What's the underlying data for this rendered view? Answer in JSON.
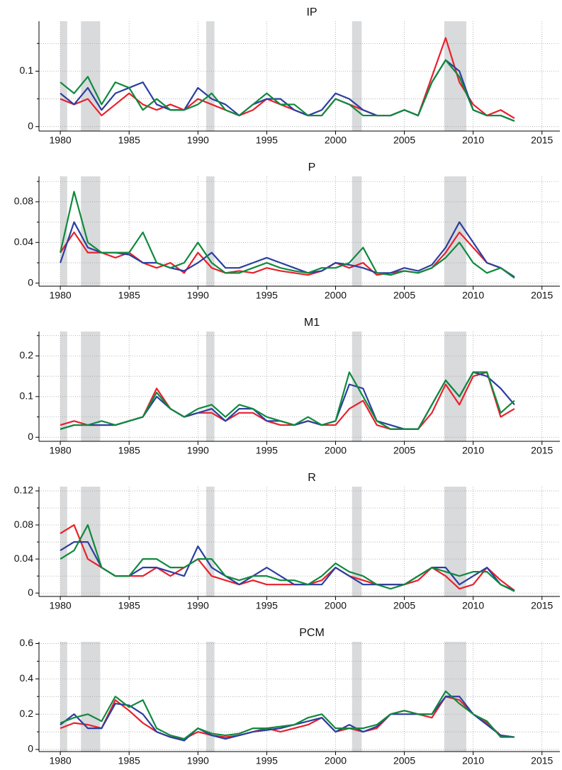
{
  "chart_data": [
    {
      "type": "line",
      "title": "IP",
      "x": [
        1980,
        1981,
        1982,
        1983,
        1984,
        1985,
        1986,
        1987,
        1988,
        1989,
        1990,
        1991,
        1992,
        1993,
        1994,
        1995,
        1996,
        1997,
        1998,
        1999,
        2000,
        2001,
        2002,
        2003,
        2004,
        2005,
        2006,
        2007,
        2008,
        2009,
        2010,
        2011,
        2012,
        2013
      ],
      "series": [
        {
          "color": "#e8212b",
          "values": [
            0.05,
            0.04,
            0.05,
            0.02,
            0.04,
            0.06,
            0.04,
            0.03,
            0.04,
            0.03,
            0.05,
            0.04,
            0.03,
            0.02,
            0.03,
            0.05,
            0.04,
            0.03,
            0.02,
            0.02,
            0.05,
            0.04,
            0.03,
            0.02,
            0.02,
            0.03,
            0.02,
            0.09,
            0.16,
            0.08,
            0.04,
            0.02,
            0.03,
            0.015
          ]
        },
        {
          "color": "#2b3fa0",
          "values": [
            0.06,
            0.04,
            0.07,
            0.03,
            0.06,
            0.07,
            0.08,
            0.04,
            0.03,
            0.03,
            0.07,
            0.05,
            0.04,
            0.02,
            0.04,
            0.05,
            0.05,
            0.03,
            0.02,
            0.03,
            0.06,
            0.05,
            0.03,
            0.02,
            0.02,
            0.03,
            0.02,
            0.08,
            0.12,
            0.1,
            0.03,
            0.02,
            0.02,
            0.01
          ]
        },
        {
          "color": "#0f8a3e",
          "values": [
            0.08,
            0.06,
            0.09,
            0.04,
            0.08,
            0.07,
            0.03,
            0.05,
            0.03,
            0.03,
            0.04,
            0.06,
            0.03,
            0.02,
            0.04,
            0.06,
            0.04,
            0.04,
            0.02,
            0.02,
            0.05,
            0.04,
            0.02,
            0.02,
            0.02,
            0.03,
            0.02,
            0.08,
            0.12,
            0.09,
            0.03,
            0.02,
            0.02,
            0.01
          ]
        }
      ],
      "shaded_x": [
        [
          1980,
          1980.5
        ],
        [
          1981.5,
          1982.9
        ],
        [
          1990.6,
          1991.2
        ],
        [
          2001.2,
          2001.9
        ],
        [
          2007.9,
          2009.5
        ]
      ],
      "xlim": [
        1978.45,
        2016.3
      ],
      "xticks": [
        1980,
        1985,
        1990,
        1995,
        2000,
        2005,
        2010,
        2015
      ],
      "ylim": [
        -0.008,
        0.19
      ],
      "yticks": [
        0,
        0.1
      ],
      "minor_yticks": [
        0.05,
        0.15
      ],
      "grid": true
    },
    {
      "type": "line",
      "title": "P",
      "x": [
        1980,
        1981,
        1982,
        1983,
        1984,
        1985,
        1986,
        1987,
        1988,
        1989,
        1990,
        1991,
        1992,
        1993,
        1994,
        1995,
        1996,
        1997,
        1998,
        1999,
        2000,
        2001,
        2002,
        2003,
        2004,
        2005,
        2006,
        2007,
        2008,
        2009,
        2010,
        2011,
        2012,
        2013
      ],
      "series": [
        {
          "color": "#e8212b",
          "values": [
            0.03,
            0.05,
            0.03,
            0.03,
            0.025,
            0.03,
            0.02,
            0.015,
            0.02,
            0.01,
            0.03,
            0.015,
            0.01,
            0.012,
            0.01,
            0.015,
            0.012,
            0.01,
            0.008,
            0.012,
            0.02,
            0.015,
            0.02,
            0.008,
            0.01,
            0.012,
            0.01,
            0.015,
            0.03,
            0.05,
            0.035,
            0.02,
            0.015,
            0.006
          ]
        },
        {
          "color": "#2b3fa0",
          "values": [
            0.02,
            0.06,
            0.035,
            0.03,
            0.03,
            0.028,
            0.02,
            0.02,
            0.015,
            0.012,
            0.02,
            0.03,
            0.015,
            0.015,
            0.02,
            0.025,
            0.02,
            0.015,
            0.01,
            0.012,
            0.02,
            0.018,
            0.015,
            0.01,
            0.01,
            0.015,
            0.012,
            0.018,
            0.035,
            0.06,
            0.04,
            0.02,
            0.015,
            0.006
          ]
        },
        {
          "color": "#0f8a3e",
          "values": [
            0.03,
            0.09,
            0.04,
            0.03,
            0.03,
            0.03,
            0.05,
            0.02,
            0.015,
            0.02,
            0.04,
            0.02,
            0.01,
            0.01,
            0.015,
            0.02,
            0.015,
            0.012,
            0.01,
            0.015,
            0.015,
            0.02,
            0.035,
            0.01,
            0.008,
            0.012,
            0.01,
            0.015,
            0.025,
            0.04,
            0.02,
            0.01,
            0.015,
            0.005
          ]
        }
      ],
      "shaded_x": [
        [
          1980,
          1980.5
        ],
        [
          1981.5,
          1982.9
        ],
        [
          1990.6,
          1991.2
        ],
        [
          2001.2,
          2001.9
        ],
        [
          2007.9,
          2009.5
        ]
      ],
      "xlim": [
        1978.45,
        2016.3
      ],
      "xticks": [
        1980,
        1985,
        1990,
        1995,
        2000,
        2005,
        2010,
        2015
      ],
      "ylim": [
        -0.003,
        0.105
      ],
      "yticks": [
        0,
        0.04,
        0.08
      ],
      "minor_yticks": [
        0.02,
        0.06,
        0.1
      ],
      "grid": true
    },
    {
      "type": "line",
      "title": "M1",
      "x": [
        1980,
        1981,
        1982,
        1983,
        1984,
        1985,
        1986,
        1987,
        1988,
        1989,
        1990,
        1991,
        1992,
        1993,
        1994,
        1995,
        1996,
        1997,
        1998,
        1999,
        2000,
        2001,
        2002,
        2003,
        2004,
        2005,
        2006,
        2007,
        2008,
        2009,
        2010,
        2011,
        2012,
        2013
      ],
      "series": [
        {
          "color": "#e8212b",
          "values": [
            0.03,
            0.04,
            0.03,
            0.03,
            0.03,
            0.04,
            0.05,
            0.12,
            0.07,
            0.05,
            0.06,
            0.06,
            0.04,
            0.06,
            0.06,
            0.04,
            0.03,
            0.03,
            0.04,
            0.03,
            0.03,
            0.07,
            0.09,
            0.03,
            0.02,
            0.02,
            0.02,
            0.06,
            0.13,
            0.08,
            0.15,
            0.16,
            0.05,
            0.07
          ]
        },
        {
          "color": "#2b3fa0",
          "values": [
            0.02,
            0.03,
            0.03,
            0.03,
            0.03,
            0.04,
            0.05,
            0.1,
            0.07,
            0.05,
            0.06,
            0.07,
            0.04,
            0.07,
            0.07,
            0.04,
            0.04,
            0.03,
            0.04,
            0.03,
            0.04,
            0.13,
            0.12,
            0.04,
            0.03,
            0.02,
            0.02,
            0.08,
            0.14,
            0.1,
            0.16,
            0.15,
            0.12,
            0.08
          ]
        },
        {
          "color": "#0f8a3e",
          "values": [
            0.02,
            0.03,
            0.03,
            0.04,
            0.03,
            0.04,
            0.05,
            0.11,
            0.07,
            0.05,
            0.07,
            0.08,
            0.05,
            0.08,
            0.07,
            0.05,
            0.04,
            0.03,
            0.05,
            0.03,
            0.04,
            0.16,
            0.1,
            0.04,
            0.02,
            0.02,
            0.02,
            0.08,
            0.14,
            0.1,
            0.16,
            0.16,
            0.06,
            0.09
          ]
        }
      ],
      "shaded_x": [
        [
          1980,
          1980.5
        ],
        [
          1981.5,
          1982.9
        ],
        [
          1990.6,
          1991.2
        ],
        [
          2001.2,
          2001.9
        ],
        [
          2007.9,
          2009.5
        ]
      ],
      "xlim": [
        1978.45,
        2016.3
      ],
      "xticks": [
        1980,
        1985,
        1990,
        1995,
        2000,
        2005,
        2010,
        2015
      ],
      "ylim": [
        -0.01,
        0.26
      ],
      "yticks": [
        0,
        0.1,
        0.2
      ],
      "minor_yticks": [
        0.05,
        0.15,
        0.25
      ],
      "grid": true
    },
    {
      "type": "line",
      "title": "R",
      "x": [
        1980,
        1981,
        1982,
        1983,
        1984,
        1985,
        1986,
        1987,
        1988,
        1989,
        1990,
        1991,
        1992,
        1993,
        1994,
        1995,
        1996,
        1997,
        1998,
        1999,
        2000,
        2001,
        2002,
        2003,
        2004,
        2005,
        2006,
        2007,
        2008,
        2009,
        2010,
        2011,
        2012,
        2013
      ],
      "series": [
        {
          "color": "#e8212b",
          "values": [
            0.07,
            0.08,
            0.04,
            0.03,
            0.02,
            0.02,
            0.02,
            0.03,
            0.02,
            0.03,
            0.04,
            0.02,
            0.015,
            0.01,
            0.015,
            0.01,
            0.01,
            0.01,
            0.01,
            0.015,
            0.03,
            0.02,
            0.015,
            0.01,
            0.01,
            0.01,
            0.015,
            0.03,
            0.02,
            0.005,
            0.01,
            0.03,
            0.015,
            0.003
          ]
        },
        {
          "color": "#2b3fa0",
          "values": [
            0.05,
            0.06,
            0.06,
            0.03,
            0.02,
            0.02,
            0.03,
            0.03,
            0.025,
            0.02,
            0.055,
            0.03,
            0.02,
            0.01,
            0.02,
            0.03,
            0.02,
            0.01,
            0.01,
            0.01,
            0.03,
            0.02,
            0.01,
            0.01,
            0.01,
            0.01,
            0.02,
            0.03,
            0.03,
            0.01,
            0.02,
            0.03,
            0.01,
            0.003
          ]
        },
        {
          "color": "#0f8a3e",
          "values": [
            0.04,
            0.05,
            0.08,
            0.03,
            0.02,
            0.02,
            0.04,
            0.04,
            0.03,
            0.03,
            0.04,
            0.04,
            0.02,
            0.015,
            0.02,
            0.02,
            0.015,
            0.015,
            0.01,
            0.02,
            0.035,
            0.025,
            0.02,
            0.01,
            0.005,
            0.01,
            0.02,
            0.03,
            0.025,
            0.02,
            0.025,
            0.025,
            0.01,
            0.002
          ]
        }
      ],
      "shaded_x": [
        [
          1980,
          1980.5
        ],
        [
          1981.5,
          1982.9
        ],
        [
          1990.6,
          1991.2
        ],
        [
          2001.2,
          2001.9
        ],
        [
          2007.9,
          2009.5
        ]
      ],
      "xlim": [
        1978.45,
        2016.3
      ],
      "xticks": [
        1980,
        1985,
        1990,
        1995,
        2000,
        2005,
        2010,
        2015
      ],
      "ylim": [
        -0.004,
        0.125
      ],
      "yticks": [
        0,
        0.04,
        0.08,
        0.12
      ],
      "minor_yticks": [
        0.02,
        0.06,
        0.1
      ],
      "grid": true
    },
    {
      "type": "line",
      "title": "PCM",
      "x": [
        1980,
        1981,
        1982,
        1983,
        1984,
        1985,
        1986,
        1987,
        1988,
        1989,
        1990,
        1991,
        1992,
        1993,
        1994,
        1995,
        1996,
        1997,
        1998,
        1999,
        2000,
        2001,
        2002,
        2003,
        2004,
        2005,
        2006,
        2007,
        2008,
        2009,
        2010,
        2011,
        2012,
        2013
      ],
      "series": [
        {
          "color": "#e8212b",
          "values": [
            0.12,
            0.15,
            0.14,
            0.12,
            0.28,
            0.22,
            0.15,
            0.1,
            0.07,
            0.06,
            0.1,
            0.08,
            0.07,
            0.08,
            0.1,
            0.12,
            0.1,
            0.12,
            0.14,
            0.18,
            0.1,
            0.12,
            0.1,
            0.12,
            0.2,
            0.22,
            0.2,
            0.18,
            0.3,
            0.28,
            0.2,
            0.15,
            0.08,
            0.07
          ]
        },
        {
          "color": "#2b3fa0",
          "values": [
            0.14,
            0.2,
            0.12,
            0.12,
            0.26,
            0.25,
            0.2,
            0.1,
            0.07,
            0.05,
            0.12,
            0.08,
            0.06,
            0.08,
            0.1,
            0.11,
            0.12,
            0.14,
            0.16,
            0.18,
            0.1,
            0.14,
            0.1,
            0.13,
            0.2,
            0.2,
            0.2,
            0.2,
            0.3,
            0.3,
            0.2,
            0.14,
            0.08,
            0.07
          ]
        },
        {
          "color": "#0f8a3e",
          "values": [
            0.15,
            0.18,
            0.2,
            0.16,
            0.3,
            0.24,
            0.28,
            0.12,
            0.08,
            0.06,
            0.12,
            0.09,
            0.08,
            0.09,
            0.12,
            0.12,
            0.13,
            0.14,
            0.18,
            0.2,
            0.12,
            0.12,
            0.12,
            0.14,
            0.2,
            0.22,
            0.2,
            0.2,
            0.33,
            0.26,
            0.2,
            0.16,
            0.07,
            0.07
          ]
        }
      ],
      "shaded_x": [
        [
          1980,
          1980.5
        ],
        [
          1981.5,
          1982.9
        ],
        [
          1990.6,
          1991.2
        ],
        [
          2001.2,
          2001.9
        ],
        [
          2007.9,
          2009.5
        ]
      ],
      "xlim": [
        1978.45,
        2016.3
      ],
      "xticks": [
        1980,
        1985,
        1990,
        1995,
        2000,
        2005,
        2010,
        2015
      ],
      "ylim": [
        -0.012,
        0.61
      ],
      "yticks": [
        0,
        0.2,
        0.4,
        0.6
      ],
      "minor_yticks": [
        0.1,
        0.3,
        0.5
      ],
      "grid": true
    }
  ]
}
